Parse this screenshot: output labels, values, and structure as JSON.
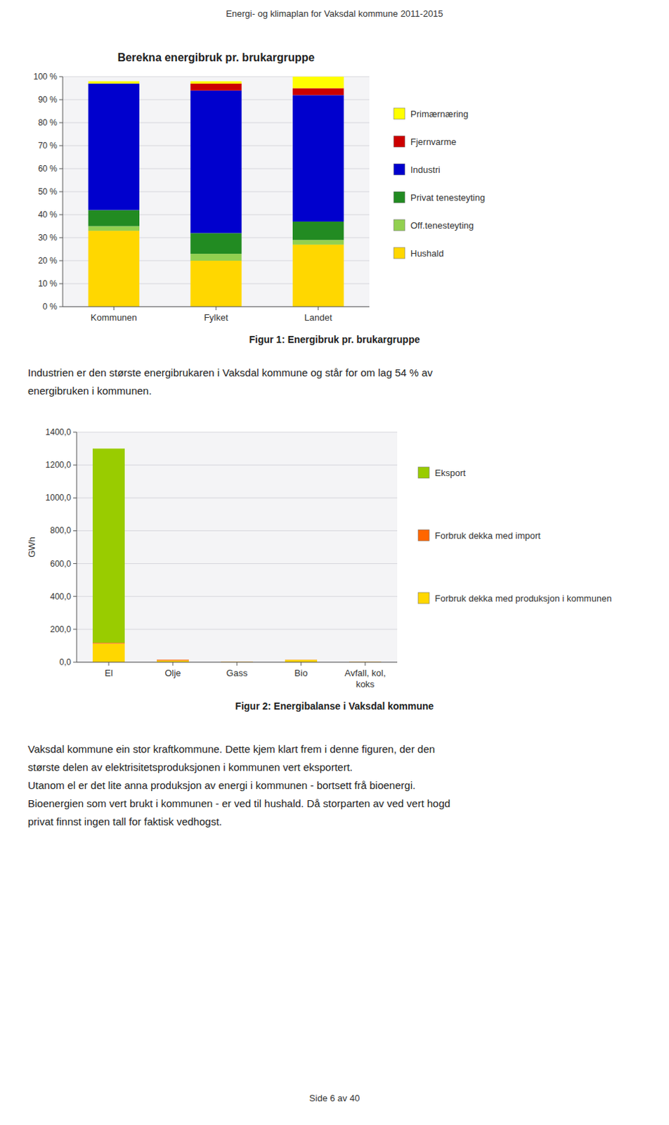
{
  "page_header": "Energi- og klimaplan for Vaksdal kommune 2011-2015",
  "paragraphs": [
    [
      "Industrien er den største energibrukaren i Vaksdal kommune og står for om lag 54 % av",
      "energibruken i kommunen."
    ],
    [
      "Vaksdal kommune ein stor kraftkommune. Dette kjem klart frem i denne figuren, der den",
      "største delen av elektrisitetsproduksjonen i kommunen vert eksportert.",
      "Utanom el er det lite anna produksjon av energi i kommunen - bortsett frå bioenergi.",
      "Bioenergien som vert brukt i kommunen - er ved til hushald. Då storparten av ved vert hogd",
      "privat finnst ingen tall for faktisk vedhogst."
    ]
  ],
  "footer": "Side 6 av 40",
  "chart_data": [
    {
      "type": "bar",
      "stacked": true,
      "grid": true,
      "title": "Berekna energibruk pr. brukargruppe",
      "caption": "Figur 1: Energibruk pr. brukargruppe",
      "categories": [
        "Kommunen",
        "Fylket",
        "Landet"
      ],
      "series": [
        {
          "name": "Hushald",
          "color": "#FFD700",
          "values": [
            33,
            20,
            27
          ]
        },
        {
          "name": "Off.tenesteyting",
          "color": "#92D050",
          "values": [
            2,
            3,
            2
          ]
        },
        {
          "name": "Privat tenesteyting",
          "color": "#228B22",
          "values": [
            7,
            9,
            8
          ]
        },
        {
          "name": "Industri",
          "color": "#0000CD",
          "values": [
            55,
            62,
            55
          ]
        },
        {
          "name": "Fjernvarme",
          "color": "#CC0000",
          "values": [
            0,
            3,
            3
          ]
        },
        {
          "name": "Primærnæring",
          "color": "#FFFF00",
          "values": [
            1,
            1,
            5
          ]
        }
      ],
      "ylim": [
        0,
        100
      ],
      "yticks": [
        {
          "value": 0,
          "label": "0 %"
        },
        {
          "value": 10,
          "label": "10 %"
        },
        {
          "value": 20,
          "label": "20 %"
        },
        {
          "value": 30,
          "label": "30 %"
        },
        {
          "value": 40,
          "label": "40 %"
        },
        {
          "value": 50,
          "label": "50 %"
        },
        {
          "value": 60,
          "label": "60 %"
        },
        {
          "value": 70,
          "label": "70 %"
        },
        {
          "value": 80,
          "label": "80 %"
        },
        {
          "value": 90,
          "label": "90 %"
        },
        {
          "value": 100,
          "label": "100 %"
        }
      ]
    },
    {
      "type": "bar",
      "stacked": true,
      "grid": true,
      "caption": "Figur 2: Energibalanse i Vaksdal kommune",
      "y_label": "GWh",
      "categories": [
        "El",
        "Olje",
        "Gass",
        "Bio",
        "Avfall, kol,\nkoks"
      ],
      "series": [
        {
          "name": "Forbruk dekka med produksjon i kommunen",
          "color": "#FFD700",
          "values": [
            113,
            10,
            2,
            14,
            2
          ]
        },
        {
          "name": "Forbruk dekka med import",
          "color": "#FF6600",
          "values": [
            5,
            5,
            1,
            1,
            1
          ]
        },
        {
          "name": "Eksport",
          "color": "#99CC00",
          "values": [
            1182,
            0,
            0,
            0,
            0
          ]
        }
      ],
      "ylim": [
        0,
        1400
      ],
      "yticks": [
        {
          "value": 0,
          "label": "0,0"
        },
        {
          "value": 200,
          "label": "200,0"
        },
        {
          "value": 400,
          "label": "400,0"
        },
        {
          "value": 600,
          "label": "600,0"
        },
        {
          "value": 800,
          "label": "800,0"
        },
        {
          "value": 1000,
          "label": "1000,0"
        },
        {
          "value": 1200,
          "label": "1200,0"
        },
        {
          "value": 1400,
          "label": "1400,0"
        }
      ]
    }
  ]
}
